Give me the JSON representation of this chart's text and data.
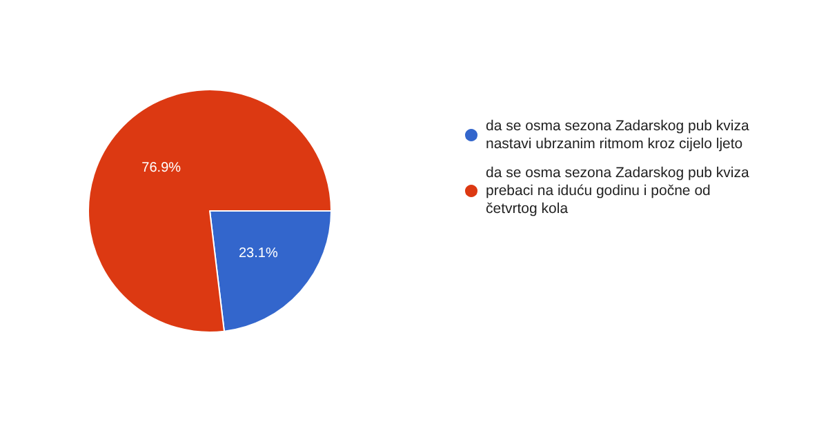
{
  "chart_data": {
    "type": "pie",
    "categories": [
      "da se osma sezona Zadarskog pub kviza nastavi ubrzanim ritmom kroz cijelo ljeto",
      "da se osma sezona Zadarskog pub kviza prebaci na iduću godinu i počne od četvrtog kola"
    ],
    "values": [
      23.1,
      76.9
    ],
    "value_labels": [
      "23.1%",
      "76.9%"
    ],
    "colors": [
      "#3366cc",
      "#dc3912"
    ],
    "legend": "right"
  }
}
